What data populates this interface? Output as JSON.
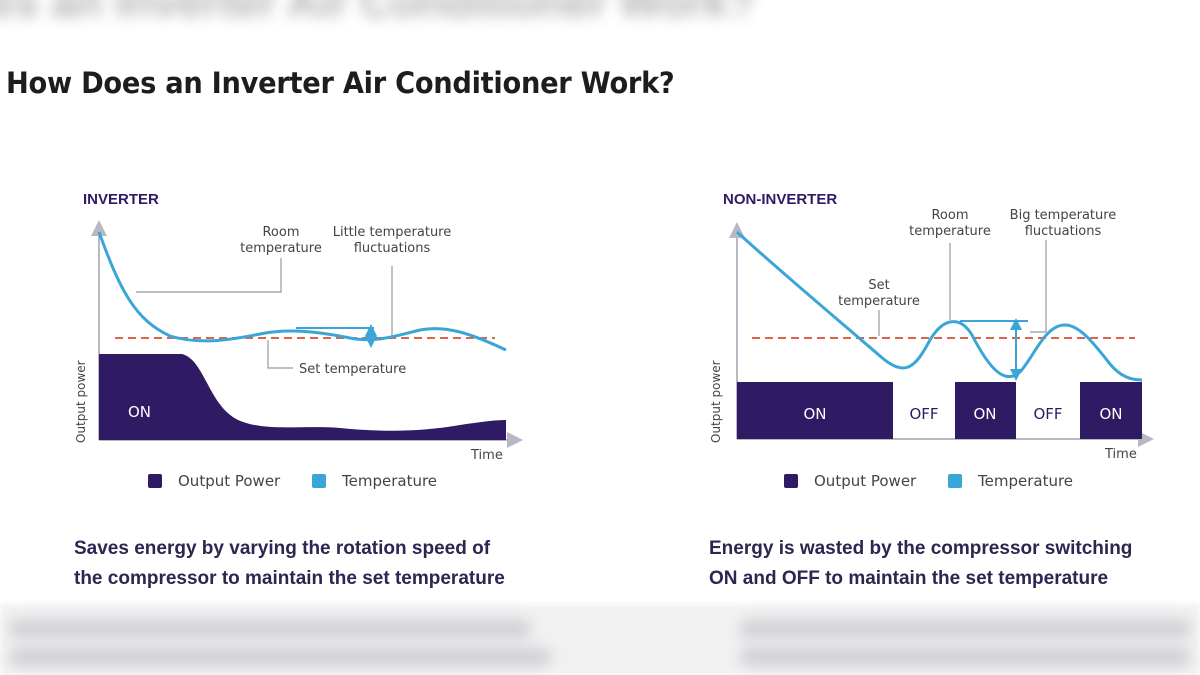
{
  "page": {
    "blurred_heading": "es an Inverter Air Conditioner Work?",
    "title": "How Does an Inverter Air Conditioner Work?"
  },
  "inverter": {
    "heading": "INVERTER",
    "axis_y": "Output power",
    "axis_x": "Time",
    "on_label": "ON",
    "annotations": {
      "room_temp_line1": "Room",
      "room_temp_line2": "temperature",
      "fluct_line1": "Little temperature",
      "fluct_line2": "fluctuations",
      "set_temp": "Set temperature"
    },
    "legend": {
      "power": "Output Power",
      "temperature": "Temperature"
    },
    "caption": {
      "line1": "Saves energy by varying the rotation speed of",
      "line2": "the compressor to maintain the set temperature"
    }
  },
  "non_inverter": {
    "heading": "NON-INVERTER",
    "axis_y": "Output power",
    "axis_x": "Time",
    "blocks": [
      "ON",
      "OFF",
      "ON",
      "OFF",
      "ON"
    ],
    "annotations": {
      "room_temp_line1": "Room",
      "room_temp_line2": "temperature",
      "set_temp_line1": "Set",
      "set_temp_line2": "temperature",
      "fluct_line1": "Big temperature",
      "fluct_line2": "fluctuations"
    },
    "legend": {
      "power": "Output Power",
      "temperature": "Temperature"
    },
    "caption": {
      "line1": "Energy is wasted by the compressor switching",
      "line2": "ON and OFF to maintain the set temperature"
    }
  },
  "colors": {
    "power": "#2f1a64",
    "temperature": "#3aa6d8",
    "set_line": "#d9644a",
    "annotation": "#444444",
    "caption": "#2c2650"
  }
}
